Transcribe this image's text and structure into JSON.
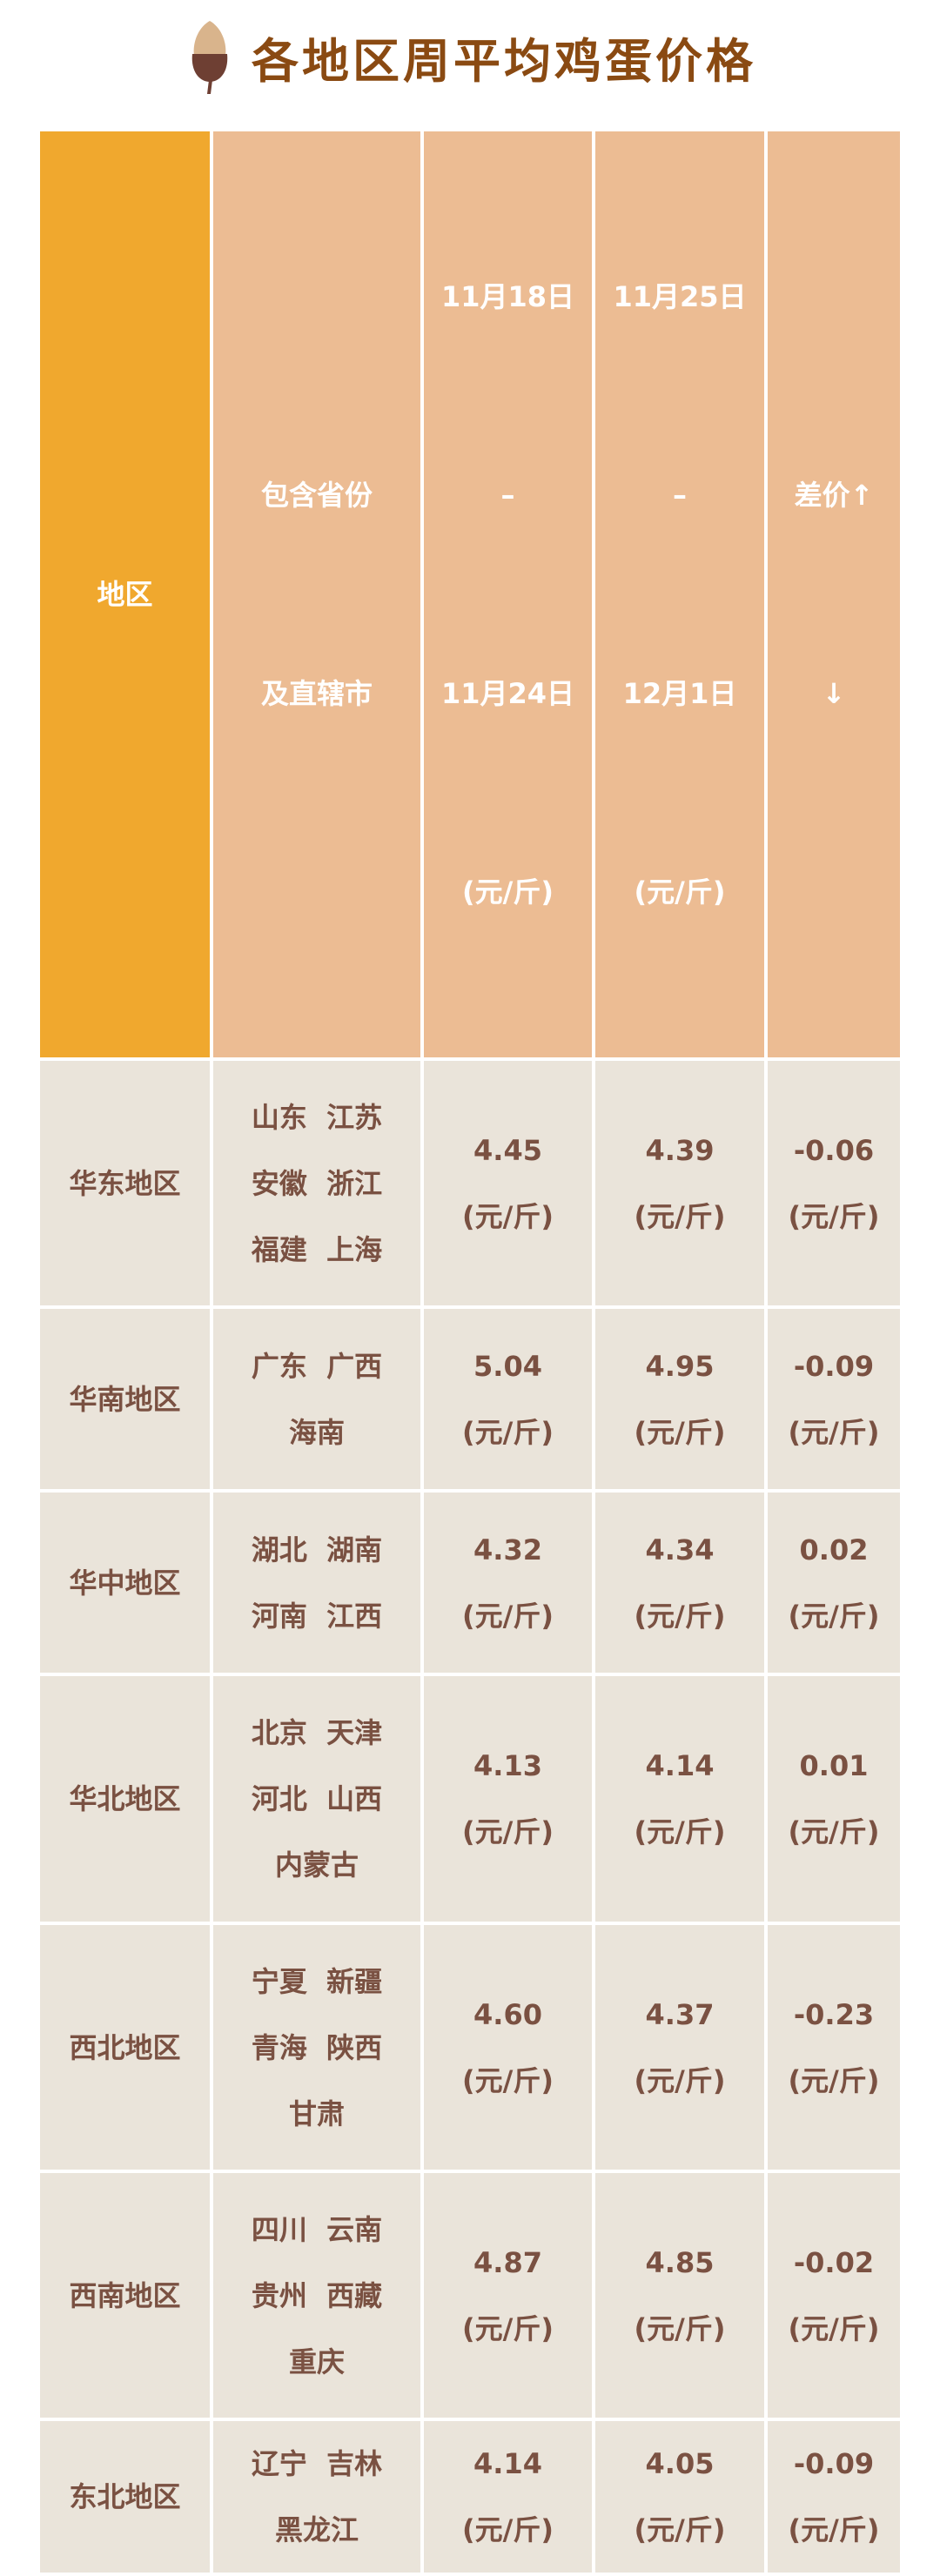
{
  "title": "各地区周平均鸡蛋价格",
  "title_icon": "acorn-icon",
  "colors": {
    "region_header": "#f0a82e",
    "header": "#ecbc93",
    "cell": "#eae4da",
    "text": "#7a5142",
    "title": "#8a4a12"
  },
  "headers": {
    "region": "地区",
    "provinces": [
      "包含省份",
      "及直辖市"
    ],
    "week1": [
      "11月18日",
      "–",
      "11月24日",
      "(元/斤)"
    ],
    "week2": [
      "11月25日",
      "–",
      "12月1日",
      "(元/斤)"
    ],
    "diff": [
      "差价↑",
      "↓"
    ]
  },
  "unit": "(元/斤)",
  "rows": [
    {
      "region": "华东地区",
      "provinces": [
        "山东  江苏",
        "安徽  浙江",
        "福建  上海"
      ],
      "week1": "4.45",
      "week2": "4.39",
      "diff": "-0.06"
    },
    {
      "region": "华南地区",
      "provinces": [
        "广东  广西",
        "海南"
      ],
      "week1": "5.04",
      "week2": "4.95",
      "diff": "-0.09"
    },
    {
      "region": "华中地区",
      "provinces": [
        "湖北  湖南",
        "河南  江西"
      ],
      "week1": "4.32",
      "week2": "4.34",
      "diff": "0.02"
    },
    {
      "region": "华北地区",
      "provinces": [
        "北京  天津",
        "河北  山西",
        "内蒙古"
      ],
      "week1": "4.13",
      "week2": "4.14",
      "diff": "0.01"
    },
    {
      "region": "西北地区",
      "provinces": [
        "宁夏  新疆",
        "青海  陕西",
        "甘肃"
      ],
      "week1": "4.60",
      "week2": "4.37",
      "diff": "-0.23"
    },
    {
      "region": "西南地区",
      "provinces": [
        "四川  云南",
        "贵州  西藏",
        "重庆"
      ],
      "week1": "4.87",
      "week2": "4.85",
      "diff": "-0.02"
    },
    {
      "region": "东北地区",
      "provinces": [
        "辽宁  吉林",
        "黑龙江"
      ],
      "week1": "4.14",
      "week2": "4.05",
      "diff": "-0.09"
    }
  ]
}
